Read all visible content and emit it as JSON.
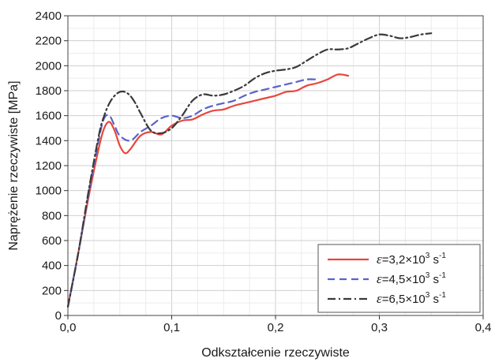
{
  "chart_data": {
    "type": "line",
    "xlabel": "Odkształcenie rzeczywiste",
    "ylabel": "Naprężenie rzeczywiste [MPa]",
    "xlim": [
      0,
      0.4
    ],
    "ylim": [
      0,
      2400
    ],
    "x_ticks": [
      0,
      0.1,
      0.2,
      0.3,
      0.4
    ],
    "x_tick_labels": [
      "0,0",
      "0,1",
      "0,2",
      "0,3",
      "0,4"
    ],
    "y_ticks": [
      0,
      200,
      400,
      600,
      800,
      1000,
      1200,
      1400,
      1600,
      1800,
      2000,
      2200,
      2400
    ],
    "y_tick_labels": [
      "0",
      "200",
      "400",
      "600",
      "800",
      "1000",
      "1200",
      "1400",
      "1600",
      "1800",
      "2000",
      "2200",
      "2400"
    ],
    "grid": true,
    "legend_position": "bottom-right",
    "series": [
      {
        "name": "ε=3,2×10³ s⁻¹",
        "legend": {
          "prefix": "ε",
          "mid": "=3,2×10",
          "sup1": "3",
          "mid2": " s",
          "sup2": "-1"
        },
        "color": "#e8463c",
        "dash": "solid",
        "x": [
          0,
          0.01,
          0.02,
          0.03,
          0.035,
          0.04,
          0.045,
          0.05,
          0.055,
          0.06,
          0.07,
          0.08,
          0.09,
          0.1,
          0.11,
          0.12,
          0.13,
          0.14,
          0.15,
          0.16,
          0.17,
          0.18,
          0.19,
          0.2,
          0.21,
          0.22,
          0.23,
          0.24,
          0.25,
          0.26,
          0.27
        ],
        "y": [
          70,
          500,
          950,
          1350,
          1500,
          1550,
          1480,
          1360,
          1300,
          1330,
          1440,
          1470,
          1450,
          1520,
          1560,
          1570,
          1610,
          1640,
          1650,
          1680,
          1700,
          1720,
          1740,
          1760,
          1790,
          1800,
          1840,
          1860,
          1890,
          1930,
          1920
        ]
      },
      {
        "name": "ε=4,5×10³ s⁻¹",
        "legend": {
          "prefix": "ε",
          "mid": "=4,5×10",
          "sup1": "3",
          "mid2": " s",
          "sup2": "-1"
        },
        "color": "#5a62c8",
        "dash": "dashed",
        "x": [
          0,
          0.01,
          0.02,
          0.03,
          0.035,
          0.04,
          0.045,
          0.05,
          0.06,
          0.07,
          0.08,
          0.09,
          0.1,
          0.11,
          0.12,
          0.13,
          0.14,
          0.15,
          0.16,
          0.17,
          0.18,
          0.19,
          0.2,
          0.21,
          0.22,
          0.23,
          0.24
        ],
        "y": [
          70,
          500,
          980,
          1420,
          1580,
          1600,
          1520,
          1440,
          1400,
          1470,
          1520,
          1580,
          1600,
          1580,
          1600,
          1650,
          1680,
          1700,
          1720,
          1760,
          1790,
          1810,
          1830,
          1850,
          1870,
          1890,
          1890
        ]
      },
      {
        "name": "ε=6,5×10³ s⁻¹",
        "legend": {
          "prefix": "ε",
          "mid": "=6,5×10",
          "sup1": "3",
          "mid2": " s",
          "sup2": "-1"
        },
        "color": "#3a3a3a",
        "dash": "dashdot",
        "x": [
          0,
          0.01,
          0.02,
          0.03,
          0.035,
          0.04,
          0.045,
          0.05,
          0.055,
          0.06,
          0.065,
          0.07,
          0.08,
          0.09,
          0.1,
          0.11,
          0.12,
          0.13,
          0.14,
          0.15,
          0.16,
          0.17,
          0.18,
          0.19,
          0.2,
          0.21,
          0.22,
          0.23,
          0.24,
          0.25,
          0.26,
          0.27,
          0.28,
          0.29,
          0.3,
          0.31,
          0.32,
          0.33,
          0.34,
          0.35
        ],
        "y": [
          70,
          500,
          1000,
          1450,
          1600,
          1700,
          1760,
          1790,
          1790,
          1760,
          1700,
          1620,
          1480,
          1460,
          1500,
          1600,
          1720,
          1770,
          1760,
          1770,
          1800,
          1840,
          1900,
          1940,
          1960,
          1970,
          1990,
          2040,
          2090,
          2130,
          2130,
          2140,
          2180,
          2220,
          2250,
          2240,
          2220,
          2230,
          2250,
          2260
        ]
      }
    ]
  }
}
